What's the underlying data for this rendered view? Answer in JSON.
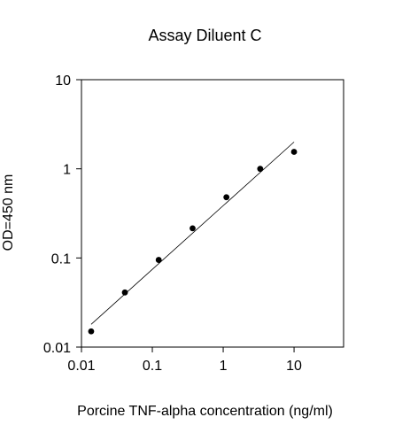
{
  "chart_data": {
    "type": "scatter",
    "title": "Assay Diluent C",
    "xlabel": "Porcine TNF-alpha concentration (ng/ml)",
    "ylabel": "OD=450 nm",
    "xscale": "log",
    "yscale": "log",
    "xlim": [
      0.01,
      50
    ],
    "ylim": [
      0.01,
      10
    ],
    "xticks": [
      "0.01",
      "0.1",
      "1",
      "10"
    ],
    "yticks": [
      "0.01",
      "0.1",
      "1",
      "10"
    ],
    "grid": false,
    "series": [
      {
        "x": [
          0.0137,
          0.041,
          0.123,
          0.37,
          1.11,
          3.33,
          10
        ],
        "y": [
          0.015,
          0.041,
          0.095,
          0.215,
          0.48,
          1.0,
          1.55
        ],
        "marker": "circle",
        "color": "#000000"
      }
    ],
    "fit_line": {
      "x": [
        0.0137,
        10
      ],
      "y": [
        0.018,
        2.0
      ]
    }
  }
}
